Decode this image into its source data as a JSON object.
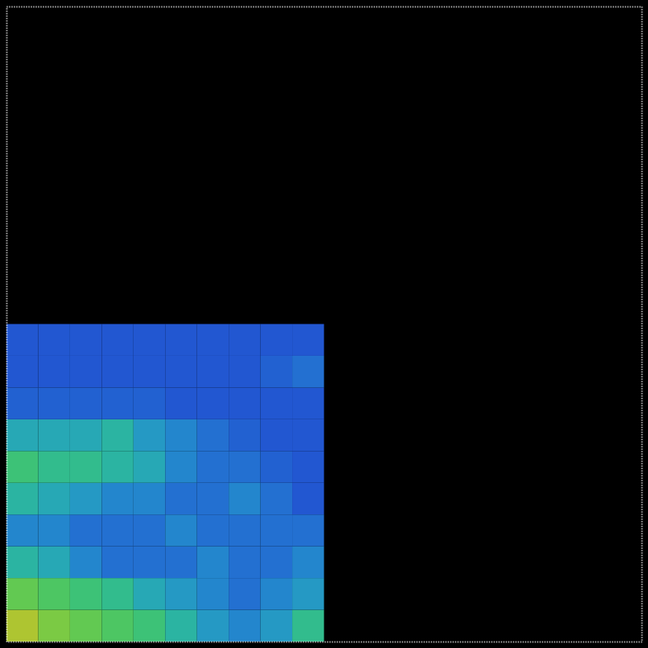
{
  "chart_data": {
    "type": "heatmap",
    "xlim": [
      0,
      2
    ],
    "ylim": [
      0,
      2
    ],
    "xticks": [],
    "yticks": [],
    "tick_labels": false,
    "grid": false,
    "x_edges": [
      0,
      0.1,
      0.2,
      0.3,
      0.4,
      0.5,
      0.6,
      0.7,
      0.8,
      0.9,
      1.0
    ],
    "y_edges": [
      0,
      0.1,
      0.2,
      0.3,
      0.4,
      0.5,
      0.6,
      0.7,
      0.8,
      0.9,
      1.0
    ],
    "cells": [
      [
        0.7,
        0.6,
        0.55,
        0.5,
        0.45,
        0.35,
        0.25,
        0.2,
        0.25,
        0.4
      ],
      [
        0.55,
        0.5,
        0.45,
        0.4,
        0.3,
        0.25,
        0.2,
        0.15,
        0.2,
        0.25
      ],
      [
        0.35,
        0.3,
        0.2,
        0.15,
        0.15,
        0.15,
        0.2,
        0.15,
        0.15,
        0.2
      ],
      [
        0.2,
        0.2,
        0.15,
        0.15,
        0.15,
        0.2,
        0.15,
        0.15,
        0.15,
        0.15
      ],
      [
        0.35,
        0.3,
        0.25,
        0.2,
        0.2,
        0.15,
        0.15,
        0.2,
        0.15,
        0.1
      ],
      [
        0.45,
        0.4,
        0.4,
        0.35,
        0.3,
        0.2,
        0.15,
        0.15,
        0.12,
        0.1
      ],
      [
        0.3,
        0.3,
        0.3,
        0.35,
        0.25,
        0.2,
        0.15,
        0.12,
        0.1,
        0.1
      ],
      [
        0.12,
        0.12,
        0.12,
        0.12,
        0.12,
        0.1,
        0.1,
        0.1,
        0.1,
        0.1
      ],
      [
        0.1,
        0.1,
        0.1,
        0.1,
        0.1,
        0.1,
        0.1,
        0.1,
        0.12,
        0.15
      ],
      [
        0.1,
        0.1,
        0.1,
        0.1,
        0.1,
        0.1,
        0.1,
        0.1,
        0.1,
        0.1
      ]
    ],
    "zlim": [
      0,
      1
    ],
    "colors": [
      "#2222cc",
      "#22aadd",
      "#33cc55",
      "#ddcc22",
      "#ee7722"
    ]
  }
}
